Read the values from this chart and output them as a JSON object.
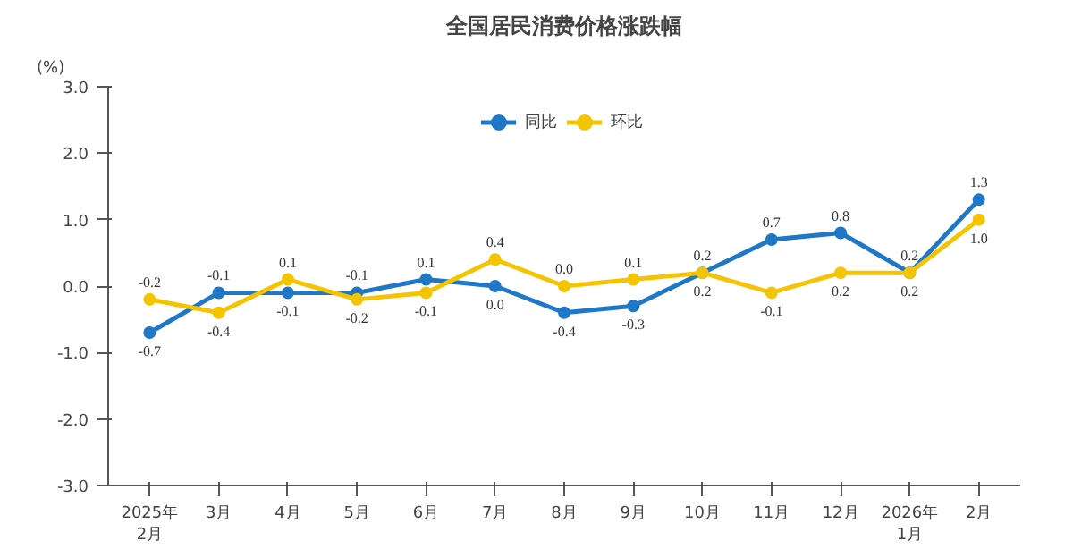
{
  "chart_data": {
    "type": "line",
    "title": "全国居民消费价格涨跌幅",
    "ylabel": "(%)",
    "categories": [
      "2025年\n2月",
      "3月",
      "4月",
      "5月",
      "6月",
      "7月",
      "8月",
      "9月",
      "10月",
      "11月",
      "12月",
      "2026年\n1月",
      "2月"
    ],
    "series": [
      {
        "name": "同比",
        "color": "#1f77c8",
        "values": [
          -0.7,
          -0.1,
          -0.1,
          -0.1,
          0.1,
          0.0,
          -0.4,
          -0.3,
          0.2,
          0.7,
          0.8,
          0.2,
          1.3
        ],
        "value_labels": [
          "-0.7",
          "-0.1",
          "-0.1",
          "-0.1",
          "0.1",
          "0.0",
          "-0.4",
          "-0.3",
          "0.2",
          "0.7",
          "0.8",
          "0.2",
          "1.3"
        ]
      },
      {
        "name": "环比",
        "color": "#f5c400",
        "values": [
          -0.2,
          -0.4,
          0.1,
          -0.2,
          -0.1,
          0.4,
          0.0,
          0.1,
          0.2,
          -0.1,
          0.2,
          0.2,
          1.0
        ],
        "value_labels": [
          "-0.2",
          "-0.4",
          "0.1",
          "-0.2",
          "-0.1",
          "0.4",
          "0.0",
          "0.1",
          "0.2",
          "-0.1",
          "0.2",
          "0.2",
          "1.0"
        ]
      }
    ],
    "ylim": [
      -3,
      3
    ],
    "yticks": [
      {
        "value": -3,
        "label": "-3.0"
      },
      {
        "value": -2,
        "label": "-2.0"
      },
      {
        "value": -1,
        "label": "-1.0"
      },
      {
        "value": 0,
        "label": "0.0"
      },
      {
        "value": 1,
        "label": "1.0"
      },
      {
        "value": 2,
        "label": "2.0"
      },
      {
        "value": 3,
        "label": "3.0"
      }
    ],
    "legend": "top",
    "marker": "circle",
    "line_style": "solid",
    "grid": false
  }
}
